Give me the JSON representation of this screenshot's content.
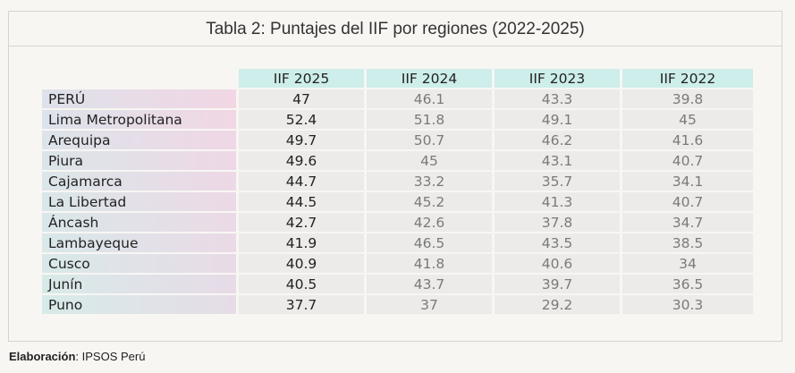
{
  "title": "Tabla 2: Puntajes del IIF por regiones (2022-2025)",
  "columns": [
    "IIF 2025",
    "IIF 2024",
    "IIF 2023",
    "IIF 2022"
  ],
  "rows": [
    {
      "region": "PERÚ",
      "values": [
        "47",
        "46.1",
        "43.3",
        "39.8"
      ]
    },
    {
      "region": "Lima Metropolitana",
      "values": [
        "52.4",
        "51.8",
        "49.1",
        "45"
      ]
    },
    {
      "region": "Arequipa",
      "values": [
        "49.7",
        "50.7",
        "46.2",
        "41.6"
      ]
    },
    {
      "region": "Piura",
      "values": [
        "49.6",
        "45",
        "43.1",
        "40.7"
      ]
    },
    {
      "region": "Cajamarca",
      "values": [
        "44.7",
        "33.2",
        "35.7",
        "34.1"
      ]
    },
    {
      "region": "La Libertad",
      "values": [
        "44.5",
        "45.2",
        "41.3",
        "40.7"
      ]
    },
    {
      "region": "Áncash",
      "values": [
        "42.7",
        "42.6",
        "37.8",
        "34.7"
      ]
    },
    {
      "region": "Lambayeque",
      "values": [
        "41.9",
        "46.5",
        "43.5",
        "38.5"
      ]
    },
    {
      "region": "Cusco",
      "values": [
        "40.9",
        "41.8",
        "40.6",
        "34"
      ]
    },
    {
      "region": "Junín",
      "values": [
        "40.5",
        "43.7",
        "39.7",
        "36.5"
      ]
    },
    {
      "region": "Puno",
      "values": [
        "37.7",
        "37",
        "29.2",
        "30.3"
      ]
    }
  ],
  "footer": {
    "label": "Elaboración",
    "text": ": IPSOS Perú"
  },
  "colors": {
    "header": "#cdeeea",
    "cell": "#ecebe9",
    "label_pink": "#f2d5e4",
    "label_teal": "#d3ebea"
  }
}
